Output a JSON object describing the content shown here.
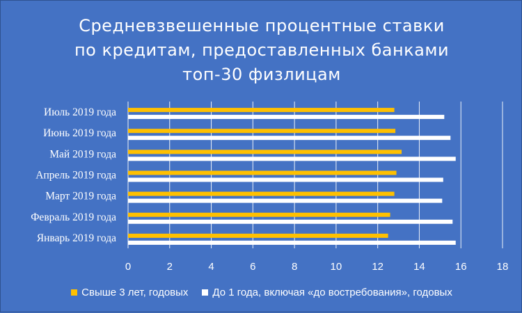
{
  "chart_data": {
    "type": "bar",
    "orientation": "horizontal",
    "title_lines": [
      "Средневзвешенные процентные ставки",
      "по кредитам, предоставленных банками",
      "топ-30 физлицам"
    ],
    "categories": [
      "Июль 2019 года",
      "Июнь 2019 года",
      "Май 2019 года",
      "Апрель 2019 года",
      "Март 2019 года",
      "Февраль 2019 года",
      "Январь 2019 года"
    ],
    "series": [
      {
        "name": "Свыше 3 лет, годовых",
        "color": "#ffc000",
        "values": [
          12.8,
          12.85,
          13.15,
          12.9,
          12.8,
          12.6,
          12.5
        ]
      },
      {
        "name": "До 1 года, включая «до востребования», годовых",
        "color": "#ffffff",
        "values": [
          15.2,
          15.5,
          15.75,
          15.15,
          15.1,
          15.6,
          15.75
        ]
      }
    ],
    "xlim": [
      0,
      18
    ],
    "xticks": [
      0,
      2,
      4,
      6,
      8,
      10,
      12,
      14,
      16,
      18
    ],
    "grid": true,
    "legend_position": "bottom"
  }
}
